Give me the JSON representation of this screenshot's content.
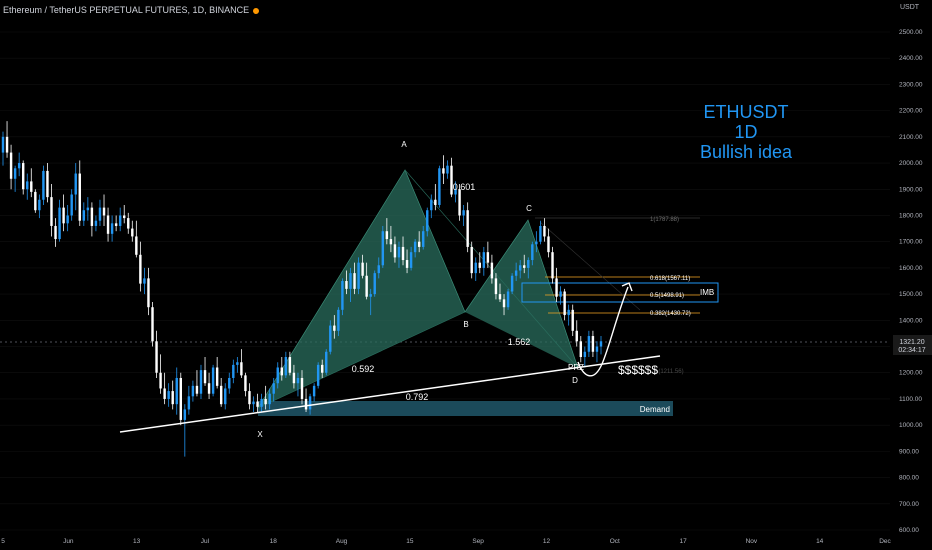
{
  "header": {
    "symbol_title": "Ethereum / TetherUS PERPETUAL FUTURES, 1D, BINANCE",
    "status_dot_color": "#ff9800",
    "unit_label": "USDT"
  },
  "idea": {
    "line1": "ETHUSDT",
    "line2": "1D",
    "line3": "Bullish idea"
  },
  "colors": {
    "up": "#2196f3",
    "down": "#ffffff",
    "pattern_fill": "#2a6e5e",
    "demand_fill": "#1b4a5a",
    "fib": "#f5a623",
    "background": "#000000"
  },
  "chart_data": {
    "type": "candlestick",
    "ylim": [
      600,
      2550
    ],
    "y_ticks": [
      "600.00",
      "700.00",
      "800.00",
      "900.00",
      "1000.00",
      "1100.00",
      "1200.00",
      "1300.00",
      "1400.00",
      "1500.00",
      "1600.00",
      "1700.00",
      "1800.00",
      "1900.00",
      "2000.00",
      "2100.00",
      "2200.00",
      "2300.00",
      "2400.00",
      "2500.00"
    ],
    "x_ticks": [
      "5",
      "Jun",
      "13",
      "Jul",
      "18",
      "Aug",
      "15",
      "Sep",
      "12",
      "Oct",
      "17",
      "Nov",
      "14",
      "Dec"
    ],
    "last_price": {
      "value": "1321.20",
      "countdown": "02:34:17"
    },
    "candles": [
      [
        2040,
        2120,
        1990,
        2100
      ],
      [
        2100,
        2160,
        2020,
        2040
      ],
      [
        2040,
        2070,
        1900,
        1940
      ],
      [
        1940,
        1990,
        1890,
        1980
      ],
      [
        1980,
        2040,
        1950,
        2000
      ],
      [
        2000,
        2010,
        1880,
        1900
      ],
      [
        1900,
        1960,
        1860,
        1930
      ],
      [
        1930,
        1980,
        1870,
        1890
      ],
      [
        1890,
        1900,
        1810,
        1820
      ],
      [
        1820,
        1880,
        1790,
        1860
      ],
      [
        1860,
        1990,
        1840,
        1970
      ],
      [
        1970,
        2000,
        1850,
        1870
      ],
      [
        1870,
        1920,
        1720,
        1760
      ],
      [
        1760,
        1790,
        1680,
        1710
      ],
      [
        1710,
        1860,
        1700,
        1830
      ],
      [
        1830,
        1880,
        1740,
        1770
      ],
      [
        1770,
        1840,
        1740,
        1800
      ],
      [
        1800,
        1900,
        1780,
        1880
      ],
      [
        1880,
        2000,
        1820,
        1960
      ],
      [
        1960,
        2010,
        1760,
        1780
      ],
      [
        1780,
        1850,
        1760,
        1820
      ],
      [
        1820,
        1870,
        1780,
        1830
      ],
      [
        1830,
        1850,
        1720,
        1760
      ],
      [
        1760,
        1800,
        1740,
        1780
      ],
      [
        1780,
        1860,
        1760,
        1830
      ],
      [
        1830,
        1880,
        1760,
        1800
      ],
      [
        1800,
        1830,
        1700,
        1730
      ],
      [
        1730,
        1800,
        1700,
        1770
      ],
      [
        1770,
        1800,
        1740,
        1760
      ],
      [
        1760,
        1830,
        1740,
        1800
      ],
      [
        1800,
        1840,
        1770,
        1790
      ],
      [
        1790,
        1810,
        1730,
        1750
      ],
      [
        1750,
        1780,
        1700,
        1720
      ],
      [
        1720,
        1780,
        1640,
        1650
      ],
      [
        1650,
        1700,
        1510,
        1540
      ],
      [
        1540,
        1600,
        1500,
        1560
      ],
      [
        1560,
        1600,
        1420,
        1450
      ],
      [
        1450,
        1470,
        1300,
        1320
      ],
      [
        1320,
        1360,
        1180,
        1200
      ],
      [
        1200,
        1270,
        1120,
        1140
      ],
      [
        1140,
        1200,
        1080,
        1100
      ],
      [
        1100,
        1160,
        1070,
        1130
      ],
      [
        1130,
        1170,
        1060,
        1080
      ],
      [
        1080,
        1220,
        1040,
        1180
      ],
      [
        1180,
        1200,
        1000,
        1020
      ],
      [
        1020,
        1080,
        880,
        1060
      ],
      [
        1060,
        1150,
        1040,
        1110
      ],
      [
        1110,
        1170,
        1090,
        1150
      ],
      [
        1150,
        1210,
        1110,
        1120
      ],
      [
        1120,
        1230,
        1100,
        1210
      ],
      [
        1210,
        1260,
        1150,
        1160
      ],
      [
        1160,
        1200,
        1100,
        1120
      ],
      [
        1120,
        1230,
        1110,
        1220
      ],
      [
        1220,
        1260,
        1140,
        1150
      ],
      [
        1150,
        1180,
        1070,
        1080
      ],
      [
        1080,
        1160,
        1060,
        1140
      ],
      [
        1140,
        1200,
        1120,
        1180
      ],
      [
        1180,
        1250,
        1160,
        1230
      ],
      [
        1230,
        1260,
        1200,
        1240
      ],
      [
        1240,
        1290,
        1180,
        1190
      ],
      [
        1190,
        1200,
        1110,
        1130
      ],
      [
        1130,
        1160,
        1060,
        1080
      ],
      [
        1080,
        1110,
        1050,
        1090
      ],
      [
        1090,
        1120,
        1050,
        1070
      ],
      [
        1070,
        1120,
        1050,
        1100
      ],
      [
        1100,
        1150,
        1060,
        1080
      ],
      [
        1080,
        1140,
        1060,
        1120
      ],
      [
        1120,
        1180,
        1090,
        1160
      ],
      [
        1160,
        1240,
        1140,
        1220
      ],
      [
        1220,
        1260,
        1170,
        1190
      ],
      [
        1190,
        1280,
        1180,
        1260
      ],
      [
        1260,
        1280,
        1190,
        1200
      ],
      [
        1200,
        1230,
        1140,
        1160
      ],
      [
        1160,
        1200,
        1110,
        1180
      ],
      [
        1180,
        1210,
        1080,
        1100
      ],
      [
        1100,
        1140,
        1050,
        1060
      ],
      [
        1060,
        1120,
        1040,
        1110
      ],
      [
        1110,
        1160,
        1090,
        1150
      ],
      [
        1150,
        1240,
        1140,
        1230
      ],
      [
        1230,
        1250,
        1180,
        1200
      ],
      [
        1200,
        1290,
        1190,
        1280
      ],
      [
        1280,
        1400,
        1270,
        1380
      ],
      [
        1380,
        1420,
        1330,
        1360
      ],
      [
        1360,
        1450,
        1340,
        1440
      ],
      [
        1440,
        1560,
        1420,
        1550
      ],
      [
        1550,
        1590,
        1500,
        1520
      ],
      [
        1520,
        1600,
        1470,
        1580
      ],
      [
        1580,
        1620,
        1500,
        1520
      ],
      [
        1520,
        1640,
        1500,
        1620
      ],
      [
        1620,
        1650,
        1560,
        1570
      ],
      [
        1570,
        1620,
        1480,
        1490
      ],
      [
        1490,
        1520,
        1420,
        1500
      ],
      [
        1500,
        1590,
        1490,
        1580
      ],
      [
        1580,
        1640,
        1560,
        1610
      ],
      [
        1610,
        1760,
        1600,
        1740
      ],
      [
        1740,
        1790,
        1690,
        1710
      ],
      [
        1710,
        1760,
        1660,
        1690
      ],
      [
        1690,
        1720,
        1620,
        1640
      ],
      [
        1640,
        1700,
        1600,
        1680
      ],
      [
        1680,
        1720,
        1610,
        1630
      ],
      [
        1630,
        1670,
        1580,
        1600
      ],
      [
        1600,
        1680,
        1590,
        1660
      ],
      [
        1660,
        1710,
        1640,
        1700
      ],
      [
        1700,
        1740,
        1660,
        1680
      ],
      [
        1680,
        1760,
        1670,
        1740
      ],
      [
        1740,
        1830,
        1720,
        1820
      ],
      [
        1820,
        1880,
        1790,
        1860
      ],
      [
        1860,
        1920,
        1820,
        1840
      ],
      [
        1840,
        1990,
        1830,
        1980
      ],
      [
        1980,
        2030,
        1920,
        1960
      ],
      [
        1960,
        2010,
        1940,
        1990
      ],
      [
        1990,
        2020,
        1870,
        1880
      ],
      [
        1880,
        1930,
        1850,
        1900
      ],
      [
        1900,
        1920,
        1780,
        1800
      ],
      [
        1800,
        1840,
        1760,
        1820
      ],
      [
        1820,
        1850,
        1660,
        1680
      ],
      [
        1680,
        1700,
        1560,
        1580
      ],
      [
        1580,
        1640,
        1550,
        1620
      ],
      [
        1620,
        1660,
        1580,
        1600
      ],
      [
        1600,
        1680,
        1570,
        1660
      ],
      [
        1660,
        1700,
        1600,
        1620
      ],
      [
        1620,
        1650,
        1540,
        1560
      ],
      [
        1560,
        1580,
        1480,
        1500
      ],
      [
        1500,
        1540,
        1470,
        1480
      ],
      [
        1480,
        1500,
        1420,
        1450
      ],
      [
        1450,
        1520,
        1440,
        1510
      ],
      [
        1510,
        1580,
        1500,
        1570
      ],
      [
        1570,
        1620,
        1550,
        1590
      ],
      [
        1590,
        1630,
        1560,
        1610
      ],
      [
        1610,
        1650,
        1580,
        1600
      ],
      [
        1600,
        1640,
        1560,
        1630
      ],
      [
        1630,
        1700,
        1610,
        1690
      ],
      [
        1690,
        1740,
        1660,
        1700
      ],
      [
        1700,
        1780,
        1690,
        1760
      ],
      [
        1760,
        1790,
        1700,
        1720
      ],
      [
        1720,
        1750,
        1640,
        1660
      ],
      [
        1660,
        1680,
        1540,
        1560
      ],
      [
        1560,
        1600,
        1470,
        1490
      ],
      [
        1490,
        1530,
        1460,
        1510
      ],
      [
        1510,
        1520,
        1400,
        1420
      ],
      [
        1420,
        1460,
        1380,
        1440
      ],
      [
        1440,
        1460,
        1340,
        1360
      ],
      [
        1360,
        1400,
        1300,
        1320
      ],
      [
        1320,
        1340,
        1240,
        1260
      ],
      [
        1260,
        1300,
        1220,
        1280
      ],
      [
        1280,
        1360,
        1260,
        1340
      ],
      [
        1340,
        1360,
        1260,
        1280
      ],
      [
        1280,
        1320,
        1240,
        1300
      ],
      [
        1300,
        1340,
        1270,
        1320
      ]
    ]
  },
  "pattern": {
    "points": {
      "X": "X",
      "A": "A",
      "B": "B",
      "C": "C",
      "D": "D",
      "PRZ": "PRZ"
    },
    "ratios": {
      "xab": "0.592",
      "abc": "0.601",
      "bcd": "1.562",
      "xad": "0.792"
    }
  },
  "levels": {
    "fib_1": "1(1787.88)",
    "fib_0618": "0.618(1567.11)",
    "fib_05": "0.5(1498.91)",
    "fib_0382": "0.382(1430.72)",
    "faded_level": "1(1211.56)",
    "imb_label": "IMB",
    "demand_label": "Demand",
    "target_label": "$$$$$$"
  }
}
